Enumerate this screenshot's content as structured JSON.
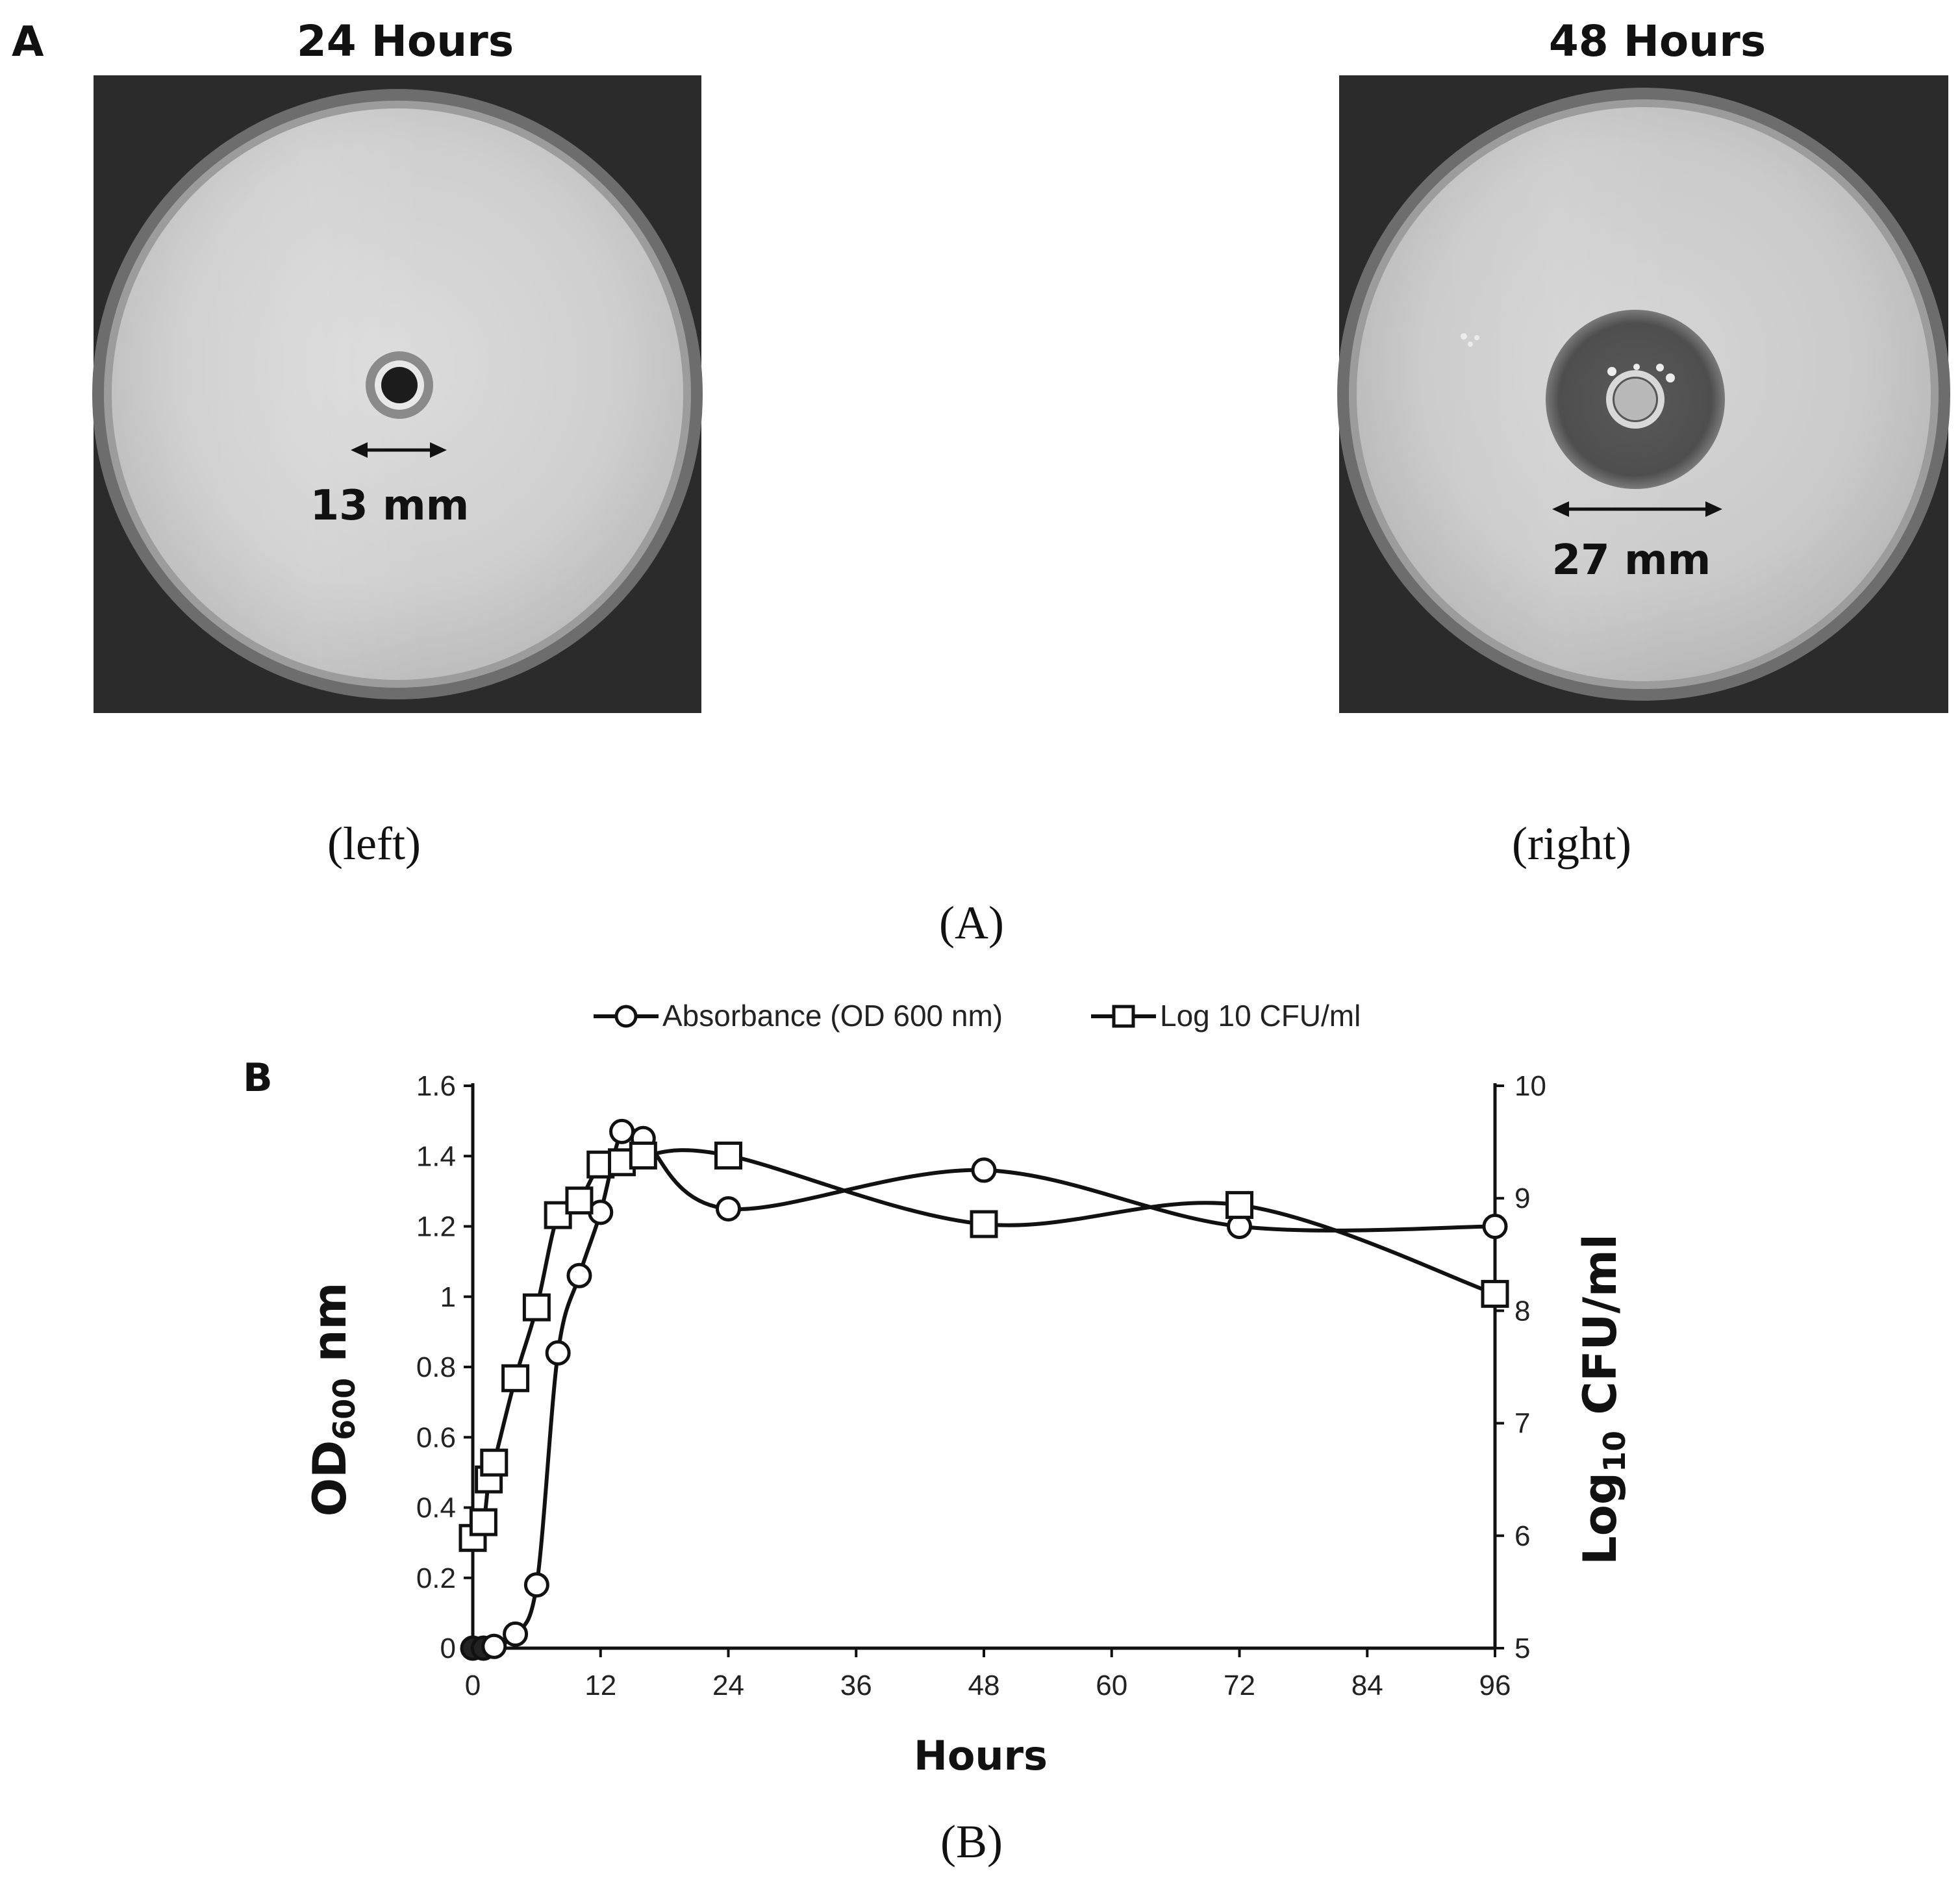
{
  "panel_a": {
    "letter": "A",
    "left": {
      "title": "24 Hours",
      "measure": "13 mm",
      "caption": "(left)"
    },
    "right": {
      "title": "48 Hours",
      "measure": "27 mm",
      "caption": "(right)"
    },
    "caption": "(A)"
  },
  "panel_b": {
    "letter": "B",
    "caption": "(B)"
  },
  "chart_data": {
    "type": "line",
    "xlabel": "Hours",
    "ylabel": "OD",
    "ylabel_sub": "600",
    "ylabel_suffix": " nm",
    "y2label": "Log",
    "y2label_sub": "10",
    "y2label_suffix": " CFU/ml",
    "xlim": [
      0,
      96
    ],
    "ylim": [
      0,
      1.6
    ],
    "y2lim": [
      5,
      10
    ],
    "xticks": [
      "0",
      "12",
      "24",
      "36",
      "48",
      "60",
      "72",
      "84",
      "96"
    ],
    "yticks": [
      "0",
      "0.2",
      "0.4",
      "0.6",
      "0.8",
      "1",
      "1.2",
      "1.4",
      "1.6"
    ],
    "y2ticks": [
      "5",
      "6",
      "7",
      "8",
      "9",
      "10"
    ],
    "legend_position": "top-center",
    "series": [
      {
        "name": "Absorbance (OD 600 nm)",
        "axis": "left",
        "marker": "circle",
        "x": [
          0,
          1,
          2,
          4,
          6,
          8,
          10,
          12,
          14,
          16,
          24,
          48,
          72,
          96
        ],
        "y": [
          0.0,
          0.0,
          0.005,
          0.04,
          0.18,
          0.84,
          1.06,
          1.24,
          1.47,
          1.45,
          1.25,
          1.36,
          1.2,
          1.2
        ]
      },
      {
        "name": "Log 10 CFU/ml",
        "axis": "right",
        "marker": "square",
        "x": [
          0,
          1,
          1.5,
          2,
          4,
          6,
          8,
          10,
          12,
          14,
          16,
          24,
          48,
          72,
          96
        ],
        "y": [
          5.98,
          6.12,
          6.5,
          6.65,
          7.4,
          8.03,
          8.85,
          8.98,
          9.3,
          9.32,
          9.38,
          9.38,
          8.77,
          8.94,
          8.15
        ]
      }
    ]
  }
}
